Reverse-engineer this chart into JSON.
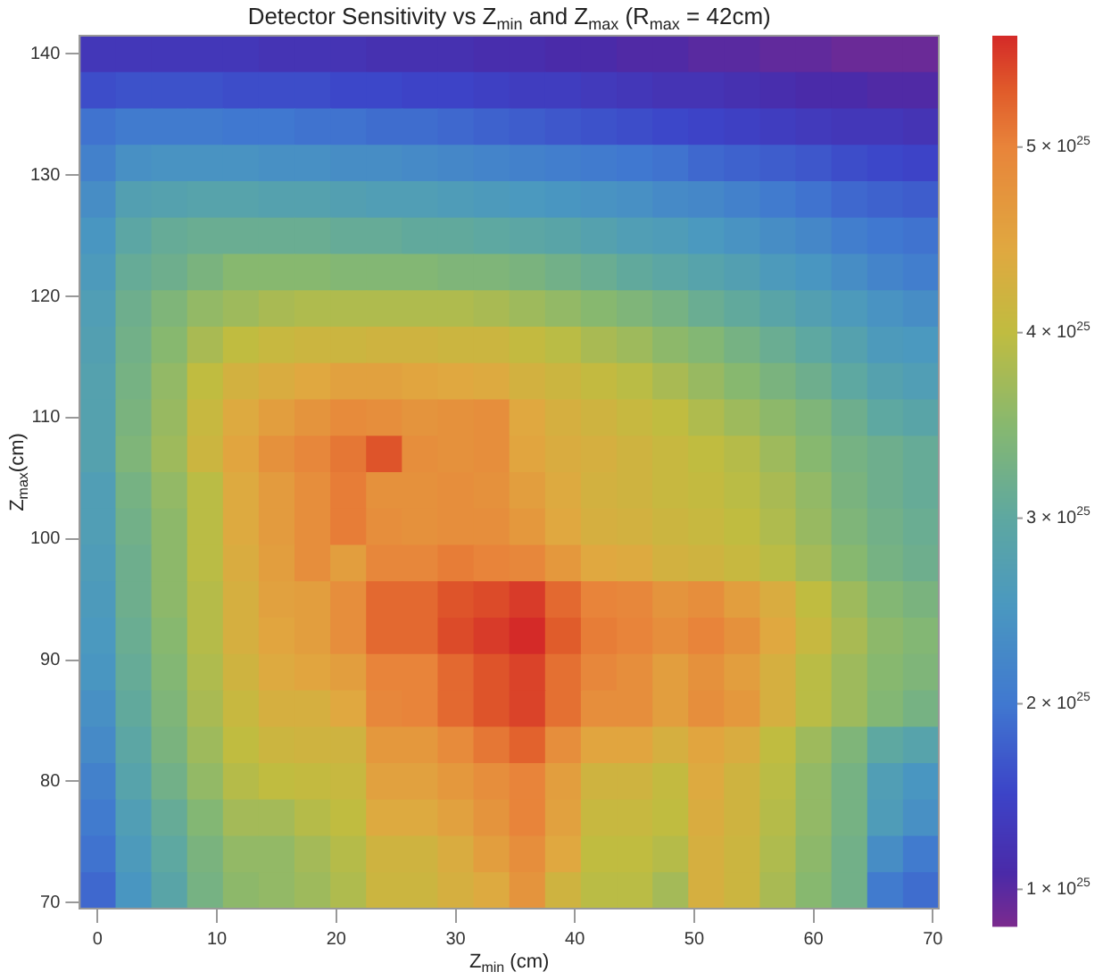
{
  "chart_data": {
    "type": "heatmap",
    "title": "Detector Sensitivity vs Z$_{min}$ and Z$_{max}$ (R$_{max}$ = 42cm)",
    "xlabel": "Z$_{min}$ (cm)",
    "ylabel": "Z$_{max}$(cm)",
    "x": [
      0,
      3,
      6,
      9,
      12,
      15,
      18,
      21,
      24,
      27,
      30,
      33,
      36,
      39,
      42,
      45,
      48,
      51,
      54,
      57,
      60,
      63,
      66,
      69
    ],
    "y": [
      140,
      137,
      134,
      131,
      128,
      125,
      122,
      119,
      116,
      113,
      110,
      107,
      104,
      101,
      98,
      95,
      92,
      89,
      86,
      83,
      80,
      77,
      74,
      71
    ],
    "xlim": [
      -1.5,
      70.5
    ],
    "ylim": [
      69.5,
      141.5
    ],
    "xticks": [
      0,
      10,
      20,
      30,
      40,
      50,
      60,
      70
    ],
    "yticks": [
      70,
      80,
      90,
      100,
      110,
      120,
      130,
      140
    ],
    "clim": [
      8e+24,
      5.6e+25
    ],
    "cticks": [
      {
        "value": 1e+25,
        "label": "1 × 10$^{25}$"
      },
      {
        "value": 2e+25,
        "label": "2 × 10$^{25}$"
      },
      {
        "value": 3e+25,
        "label": "3 × 10$^{25}$"
      },
      {
        "value": 4e+25,
        "label": "4 × 10$^{25}$"
      },
      {
        "value": 5e+25,
        "label": "5 × 10$^{25}$"
      }
    ],
    "cells": [
      [
        1.3e+25,
        1.3e+25,
        1.3e+25,
        1.3e+25,
        1.3e+25,
        1.25e+25,
        1.25e+25,
        1.25e+25,
        1.2e+25,
        1.2e+25,
        1.2e+25,
        1.15e+25,
        1.15e+25,
        1.1e+25,
        1.1e+25,
        1.05e+25,
        1.05e+25,
        1e+25,
        1e+25,
        9.5e+24,
        9.5e+24,
        9e+24,
        9e+24,
        9e+24
      ],
      [
        1.6e+25,
        1.65e+25,
        1.65e+25,
        1.65e+25,
        1.6e+25,
        1.6e+25,
        1.6e+25,
        1.55e+25,
        1.55e+25,
        1.5e+25,
        1.5e+25,
        1.45e+25,
        1.4e+25,
        1.4e+25,
        1.35e+25,
        1.3e+25,
        1.25e+25,
        1.25e+25,
        1.2e+25,
        1.15e+25,
        1.1e+25,
        1.1e+25,
        1.05e+25,
        1.05e+25
      ],
      [
        1.95e+25,
        2.05e+25,
        2.05e+25,
        2.05e+25,
        2e+25,
        2e+25,
        1.95e+25,
        1.95e+25,
        1.9e+25,
        1.9e+25,
        1.85e+25,
        1.8e+25,
        1.75e+25,
        1.7e+25,
        1.65e+25,
        1.6e+25,
        1.55e+25,
        1.5e+25,
        1.45e+25,
        1.4e+25,
        1.35e+25,
        1.3e+25,
        1.3e+25,
        1.25e+25
      ],
      [
        2.15e+25,
        2.4e+25,
        2.45e+25,
        2.45e+25,
        2.45e+25,
        2.4e+25,
        2.4e+25,
        2.35e+25,
        2.35e+25,
        2.3e+25,
        2.25e+25,
        2.2e+25,
        2.15e+25,
        2.1e+25,
        2.05e+25,
        2e+25,
        1.95e+25,
        1.85e+25,
        1.8e+25,
        1.75e+25,
        1.7e+25,
        1.6e+25,
        1.55e+25,
        1.5e+25
      ],
      [
        2.35e+25,
        2.75e+25,
        2.8e+25,
        2.85e+25,
        2.85e+25,
        2.8e+25,
        2.8e+25,
        2.75e+25,
        2.7e+25,
        2.7e+25,
        2.65e+25,
        2.6e+25,
        2.55e+25,
        2.5e+25,
        2.45e+25,
        2.4e+25,
        2.3e+25,
        2.25e+25,
        2.15e+25,
        2.05e+25,
        1.95e+25,
        1.85e+25,
        1.8e+25,
        1.75e+25
      ],
      [
        2.5e+25,
        2.95e+25,
        3.1e+25,
        3.15e+25,
        3.15e+25,
        3.15e+25,
        3.15e+25,
        3.1e+25,
        3.1e+25,
        3.05e+25,
        3.05e+25,
        3e+25,
        2.95e+25,
        2.9e+25,
        2.8e+25,
        2.7e+25,
        2.65e+25,
        2.55e+25,
        2.45e+25,
        2.35e+25,
        2.25e+25,
        2.1e+25,
        2e+25,
        1.95e+25
      ],
      [
        2.6e+25,
        3.1e+25,
        3.2e+25,
        3.35e+25,
        3.5e+25,
        3.5e+25,
        3.5e+25,
        3.45e+25,
        3.45e+25,
        3.45e+25,
        3.4e+25,
        3.4e+25,
        3.35e+25,
        3.25e+25,
        3.15e+25,
        3.05e+25,
        2.95e+25,
        2.85e+25,
        2.75e+25,
        2.6e+25,
        2.5e+25,
        2.35e+25,
        2.2e+25,
        2.1e+25
      ],
      [
        2.7e+25,
        3.2e+25,
        3.4e+25,
        3.6e+25,
        3.7e+25,
        3.8e+25,
        3.85e+25,
        3.85e+25,
        3.85e+25,
        3.85e+25,
        3.85e+25,
        3.8e+25,
        3.7e+25,
        3.6e+25,
        3.5e+25,
        3.4e+25,
        3.3e+25,
        3.15e+25,
        3.05e+25,
        2.9e+25,
        2.75e+25,
        2.6e+25,
        2.45e+25,
        2.35e+25
      ],
      [
        2.75e+25,
        3.25e+25,
        3.5e+25,
        3.8e+25,
        4e+25,
        4.1e+25,
        4.15e+25,
        4.15e+25,
        4.2e+25,
        4.2e+25,
        4.15e+25,
        4.15e+25,
        4.05e+25,
        3.95e+25,
        3.8e+25,
        3.7e+25,
        3.55e+25,
        3.45e+25,
        3.3e+25,
        3.15e+25,
        3e+25,
        2.8e+25,
        2.6e+25,
        2.55e+25
      ],
      [
        2.8e+25,
        3.3e+25,
        3.6e+25,
        4e+25,
        4.25e+25,
        4.35e+25,
        4.45e+25,
        4.55e+25,
        4.55e+25,
        4.5e+25,
        4.45e+25,
        4.4e+25,
        4.25e+25,
        4.15e+25,
        4.05e+25,
        3.95e+25,
        3.8e+25,
        3.65e+25,
        3.5e+25,
        3.35e+25,
        3.2e+25,
        3e+25,
        2.8e+25,
        2.7e+25
      ],
      [
        2.8e+25,
        3.35e+25,
        3.65e+25,
        4.1e+25,
        4.4e+25,
        4.6e+25,
        4.75e+25,
        4.9e+25,
        4.85e+25,
        4.75e+25,
        4.8e+25,
        4.85e+25,
        4.45e+25,
        4.3e+25,
        4.2e+25,
        4.1e+25,
        4e+25,
        3.85e+25,
        3.7e+25,
        3.55e+25,
        3.4e+25,
        3.2e+25,
        3e+25,
        2.9e+25
      ],
      [
        2.8e+25,
        3.4e+25,
        3.7e+25,
        4.15e+25,
        4.5e+25,
        4.8e+25,
        4.95e+25,
        5.1e+25,
        5.35e+25,
        4.85e+25,
        4.8e+25,
        4.85e+25,
        4.5e+25,
        4.35e+25,
        4.3e+25,
        4.2e+25,
        4.1e+25,
        4e+25,
        3.9e+25,
        3.7e+25,
        3.5e+25,
        3.3e+25,
        3.2e+25,
        3.1e+25
      ],
      [
        2.7e+25,
        3.3e+25,
        3.6e+25,
        3.95e+25,
        4.4e+25,
        4.65e+25,
        4.85e+25,
        5.05e+25,
        4.8e+25,
        4.8e+25,
        4.85e+25,
        4.8e+25,
        4.6e+25,
        4.4e+25,
        4.25e+25,
        4.2e+25,
        4.1e+25,
        4.05e+25,
        3.95e+25,
        3.8e+25,
        3.6e+25,
        3.35e+25,
        3.2e+25,
        3.1e+25
      ],
      [
        2.7e+25,
        3.25e+25,
        3.55e+25,
        3.95e+25,
        4.4e+25,
        4.65e+25,
        4.85e+25,
        5.05e+25,
        4.85e+25,
        4.8e+25,
        4.85e+25,
        4.85e+25,
        4.7e+25,
        4.45e+25,
        4.3e+25,
        4.25e+25,
        4.15e+25,
        4.1e+25,
        4e+25,
        3.85e+25,
        3.65e+25,
        3.4e+25,
        3.25e+25,
        3.15e+25
      ],
      [
        2.65e+25,
        3.2e+25,
        3.55e+25,
        3.95e+25,
        4.35e+25,
        4.6e+25,
        4.85e+25,
        4.6e+25,
        4.95e+25,
        4.95e+25,
        5.05e+25,
        5e+25,
        4.95e+25,
        4.7e+25,
        4.45e+25,
        4.4e+25,
        4.25e+25,
        4.2e+25,
        4.1e+25,
        3.95e+25,
        3.75e+25,
        3.5e+25,
        3.3e+25,
        3.2e+25
      ],
      [
        2.6e+25,
        3.2e+25,
        3.55e+25,
        3.9e+25,
        4.3e+25,
        4.55e+25,
        4.6e+25,
        4.85e+25,
        5.2e+25,
        5.2e+25,
        5.35e+25,
        5.4e+25,
        5.5e+25,
        5.2e+25,
        5e+25,
        4.95e+25,
        4.75e+25,
        4.85e+25,
        4.6e+25,
        4.35e+25,
        4e+25,
        3.7e+25,
        3.45e+25,
        3.35e+25
      ],
      [
        2.55e+25,
        3.15e+25,
        3.5e+25,
        3.9e+25,
        4.3e+25,
        4.5e+25,
        4.6e+25,
        4.85e+25,
        5.2e+25,
        5.2e+25,
        5.4e+25,
        5.5e+25,
        5.6e+25,
        5.3e+25,
        5.05e+25,
        5e+25,
        4.85e+25,
        5e+25,
        4.8e+25,
        4.45e+25,
        4.1e+25,
        3.8e+25,
        3.55e+25,
        3.45e+25
      ],
      [
        2.5e+25,
        3.1e+25,
        3.45e+25,
        3.85e+25,
        4.2e+25,
        4.4e+25,
        4.5e+25,
        4.6e+25,
        5e+25,
        5e+25,
        5.2e+25,
        5.35e+25,
        5.45e+25,
        5.15e+25,
        4.95e+25,
        4.85e+25,
        4.6e+25,
        4.8e+25,
        4.6e+25,
        4.3e+25,
        3.95e+25,
        3.7e+25,
        3.5e+25,
        3.4e+25
      ],
      [
        2.4e+25,
        3.05e+25,
        3.4e+25,
        3.8e+25,
        4.1e+25,
        4.3e+25,
        4.3e+25,
        4.45e+25,
        4.95e+25,
        5e+25,
        5.2e+25,
        5.35e+25,
        5.45e+25,
        5.15e+25,
        4.85e+25,
        4.85e+25,
        4.6e+25,
        4.85e+25,
        4.7e+25,
        4.3e+25,
        3.95e+25,
        3.7e+25,
        3.45e+25,
        3.3e+25
      ],
      [
        2.3e+25,
        2.95e+25,
        3.35e+25,
        3.7e+25,
        4e+25,
        4.15e+25,
        4.2e+25,
        4.2e+25,
        4.7e+25,
        4.7e+25,
        4.9e+25,
        5.1e+25,
        5.25e+25,
        4.85e+25,
        4.5e+25,
        4.5e+25,
        4.3e+25,
        4.5e+25,
        4.35e+25,
        4e+25,
        3.7e+25,
        3.4e+25,
        3e+25,
        2.85e+25
      ],
      [
        2.15e+25,
        2.85e+25,
        3.25e+25,
        3.6e+25,
        3.9e+25,
        4e+25,
        4.05e+25,
        4.1e+25,
        4.55e+25,
        4.55e+25,
        4.7e+25,
        4.85e+25,
        5e+25,
        4.6e+25,
        4.2e+25,
        4.2e+25,
        4.05e+25,
        4.4e+25,
        4.2e+25,
        3.95e+25,
        3.6e+25,
        3.3e+25,
        2.7e+25,
        2.5e+25
      ],
      [
        2.05e+25,
        2.7e+25,
        3.1e+25,
        3.45e+25,
        3.75e+25,
        3.75e+25,
        3.9e+25,
        4e+25,
        4.4e+25,
        4.4e+25,
        4.55e+25,
        4.75e+25,
        5e+25,
        4.55e+25,
        4.1e+25,
        4.1e+25,
        4e+25,
        4.35e+25,
        4.2e+25,
        3.9e+25,
        3.6e+25,
        3.3e+25,
        2.65e+25,
        2.4e+25
      ],
      [
        1.95e+25,
        2.6e+25,
        3e+25,
        3.35e+25,
        3.6e+25,
        3.6e+25,
        3.75e+25,
        3.9e+25,
        4.2e+25,
        4.2e+25,
        4.35e+25,
        4.6e+25,
        4.85e+25,
        4.45e+25,
        4e+25,
        4e+25,
        3.9e+25,
        4.3e+25,
        4.15e+25,
        3.85e+25,
        3.55e+25,
        3.25e+25,
        2.35e+25,
        2.05e+25
      ],
      [
        1.85e+25,
        2.5e+25,
        2.9e+25,
        3.3e+25,
        3.55e+25,
        3.6e+25,
        3.7e+25,
        3.85e+25,
        4.15e+25,
        4.15e+25,
        4.3e+25,
        4.4e+25,
        4.75e+25,
        4.2e+25,
        3.95e+25,
        3.95e+25,
        3.75e+25,
        4.3e+25,
        4.15e+25,
        3.8e+25,
        3.5e+25,
        3.25e+25,
        2.05e+25,
        1.9e+25
      ]
    ]
  }
}
